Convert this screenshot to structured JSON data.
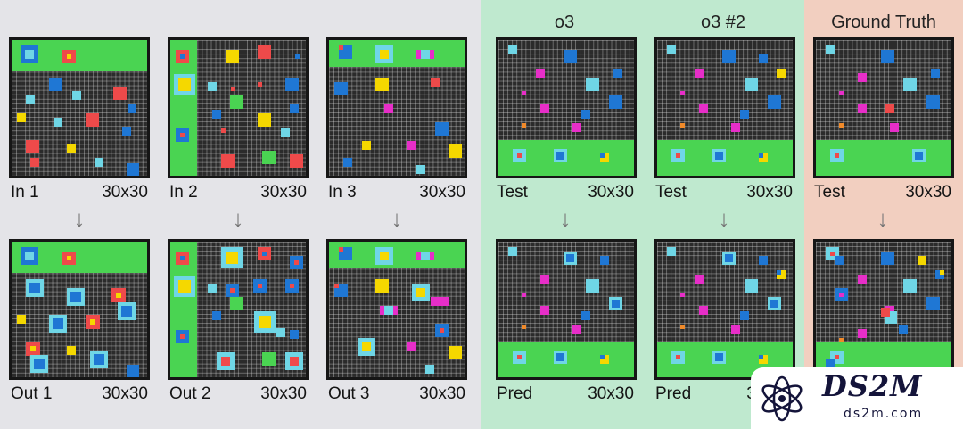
{
  "colors": {
    "background": "#e4e4e8",
    "o3_panel": "#bfe9cf",
    "truth_panel": "#f2cfc0",
    "grid_dark": "#2b2b2b",
    "band_green": "#4ad452",
    "blue": "#1f77d4",
    "red": "#ee4a4a",
    "yellow": "#f5d800",
    "cyan": "#6fd6e6",
    "magenta": "#e72ec8",
    "orange": "#f08a2a"
  },
  "headers": {
    "o3": "o3",
    "o3_2": "o3 #2",
    "truth": "Ground Truth"
  },
  "arrow_glyph": "↓",
  "panels": [
    {
      "id": "in1",
      "label": "In 1",
      "size": "30x30"
    },
    {
      "id": "in2",
      "label": "In 2",
      "size": "30x30"
    },
    {
      "id": "in3",
      "label": "In 3",
      "size": "30x30"
    },
    {
      "id": "test1",
      "label": "Test",
      "size": "30x30"
    },
    {
      "id": "test2",
      "label": "Test",
      "size": "30x30"
    },
    {
      "id": "test3",
      "label": "Test",
      "size": "30x30"
    },
    {
      "id": "out1",
      "label": "Out 1",
      "size": "30x30"
    },
    {
      "id": "out2",
      "label": "Out 2",
      "size": "30x30"
    },
    {
      "id": "out3",
      "label": "Out 3",
      "size": "30x30"
    },
    {
      "id": "pred1",
      "label": "Pred",
      "size": "30x30"
    },
    {
      "id": "pred2",
      "label": "Pred",
      "size": "30x30"
    }
  ],
  "watermark": {
    "brand": "DS2M",
    "url": "ds2m.com"
  }
}
